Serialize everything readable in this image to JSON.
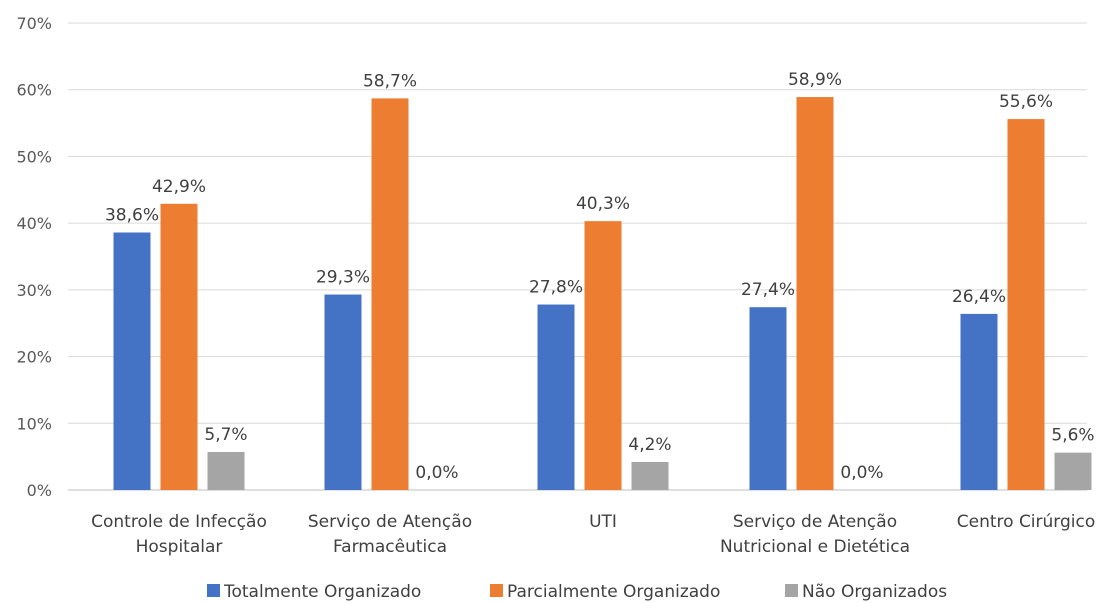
{
  "chart_data": {
    "type": "bar",
    "title": "",
    "xlabel": "",
    "ylabel": "",
    "ylim": [
      0,
      70
    ],
    "y_ticks": [
      "0%",
      "10%",
      "20%",
      "30%",
      "40%",
      "50%",
      "60%",
      "70%"
    ],
    "y_tick_values": [
      0,
      10,
      20,
      30,
      40,
      50,
      60,
      70
    ],
    "grid": true,
    "legend_position": "bottom",
    "categories": [
      [
        "Controle de Infecção",
        "Hospitalar"
      ],
      [
        "Serviço de Atenção",
        "Farmacêutica"
      ],
      [
        "UTI"
      ],
      [
        "Serviço de Atenção",
        "Nutricional e Dietética"
      ],
      [
        "Centro Cirúrgico"
      ]
    ],
    "series": [
      {
        "name": "Totalmente Organizado",
        "color": "#4472C4",
        "values": [
          38.6,
          29.3,
          27.8,
          27.4,
          26.4
        ],
        "labels": [
          "38,6%",
          "29,3%",
          "27,8%",
          "27,4%",
          "26,4%"
        ]
      },
      {
        "name": "Parcialmente Organizado",
        "color": "#ED7D31",
        "values": [
          42.9,
          58.7,
          40.3,
          58.9,
          55.6
        ],
        "labels": [
          "42,9%",
          "58,7%",
          "40,3%",
          "58,9%",
          "55,6%"
        ]
      },
      {
        "name": "Não Organizados",
        "color": "#A5A5A5",
        "values": [
          5.7,
          0.0,
          4.2,
          0.0,
          5.6
        ],
        "labels": [
          "5,7%",
          "0,0%",
          "4,2%",
          "0,0%",
          "5,6%"
        ]
      }
    ]
  }
}
